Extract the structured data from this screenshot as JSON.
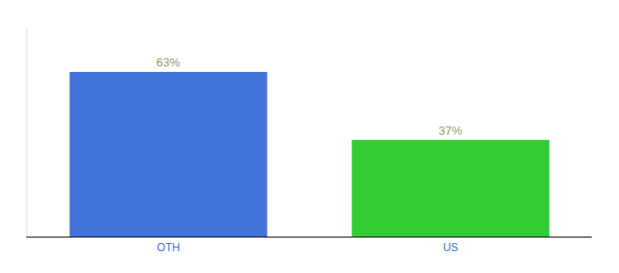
{
  "chart_data": {
    "type": "bar",
    "categories": [
      "OTH",
      "US"
    ],
    "values": [
      63,
      37
    ],
    "value_labels": [
      "63%",
      "37%"
    ],
    "colors": [
      "#4472db",
      "#33cc33"
    ],
    "ylim": [
      0,
      80
    ],
    "data_labels": true,
    "tick_labels": "x",
    "grid": false
  }
}
